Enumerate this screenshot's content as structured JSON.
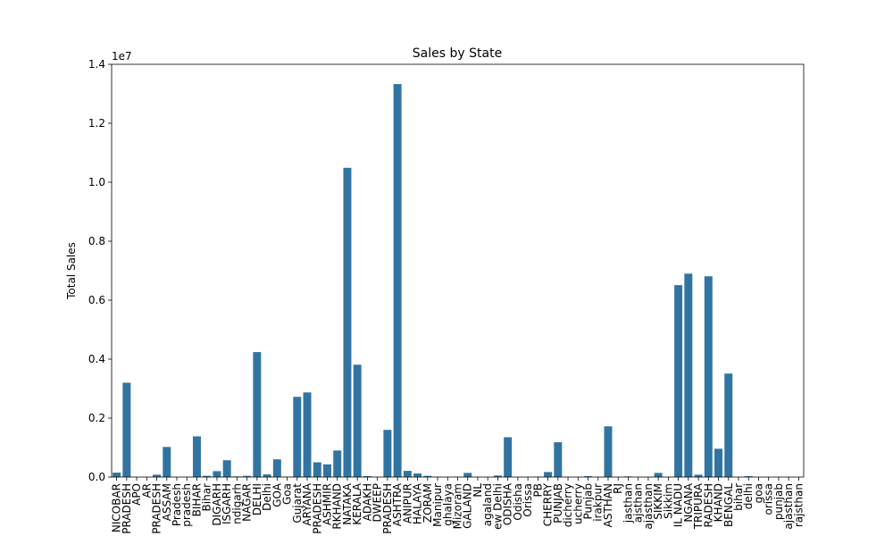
{
  "chart_data": {
    "type": "bar",
    "title": "Sales by State",
    "xlabel": "",
    "ylabel": "Total Sales",
    "scale_label": "1e7",
    "ylim": [
      0,
      1.4
    ],
    "yticks": [
      0.0,
      0.2,
      0.4,
      0.6,
      0.8,
      1.0,
      1.2,
      1.4
    ],
    "ytick_labels": [
      "0.0",
      "0.2",
      "0.4",
      "0.6",
      "0.8",
      "1.0",
      "1.2",
      "1.4"
    ],
    "bar_color": "#3274a1",
    "grid": false,
    "categories": [
      "NICOBAR",
      "PRADESH",
      "APO",
      "AR",
      "PRADESH",
      "ASSAM",
      "Pradesh",
      "pradesh",
      "BIHAR",
      "Bihar",
      "DIGARH",
      "ISGARH",
      "ndigarh",
      "NAGAR",
      "DELHI",
      "Delhi",
      "GOA",
      "Goa",
      "Gujarat",
      "ARYANA",
      "PRADESH",
      "ASHMIR",
      "RKHAND",
      "NATAKA",
      "KERALA",
      "ADAKH",
      "DWEEP",
      "PRADESH",
      "ASHTRA",
      "ANIPUR",
      "HALAYA",
      "ZORAM",
      "Manipur",
      "ghalaya",
      "Mizoram",
      "GALAND",
      "NL",
      "agaland",
      "ew Delhi",
      "ODISHA",
      "Odisha",
      "Orissa",
      "PB",
      "CHERRY",
      "PUNJAB",
      "dicherry",
      "ucherry",
      "Punjab",
      "irakpur",
      "ASTHAN",
      "RJ",
      "jasthan",
      "ajsthan",
      "ajasthan",
      "SIKKIM",
      "Sikkim",
      "IL NADU",
      "NGANA",
      "TRIPURA",
      "RADESH",
      "KHAND",
      "BENGAL",
      "bihar",
      "delhi",
      "goa",
      "orissa",
      "punjab",
      "ajasthan",
      "rajsthan"
    ],
    "values": [
      0.015,
      0.32,
      0.0,
      0.0,
      0.008,
      0.102,
      0.0,
      0.0,
      0.138,
      0.004,
      0.02,
      0.057,
      0.002,
      0.004,
      0.424,
      0.009,
      0.06,
      0.001,
      0.272,
      0.287,
      0.05,
      0.043,
      0.09,
      1.049,
      0.381,
      0.003,
      0.0,
      0.16,
      1.333,
      0.021,
      0.012,
      0.004,
      0.001,
      0.0,
      0.001,
      0.014,
      0.0,
      0.0,
      0.005,
      0.135,
      0.0,
      0.0,
      0.001,
      0.017,
      0.118,
      0.0,
      0.0,
      0.003,
      0.0,
      0.172,
      0.0,
      0.002,
      0.0,
      0.0,
      0.014,
      0.0,
      0.651,
      0.69,
      0.008,
      0.681,
      0.096,
      0.351,
      0.0,
      0.003,
      0.0,
      0.0,
      0.0,
      0.0,
      0.0
    ]
  }
}
